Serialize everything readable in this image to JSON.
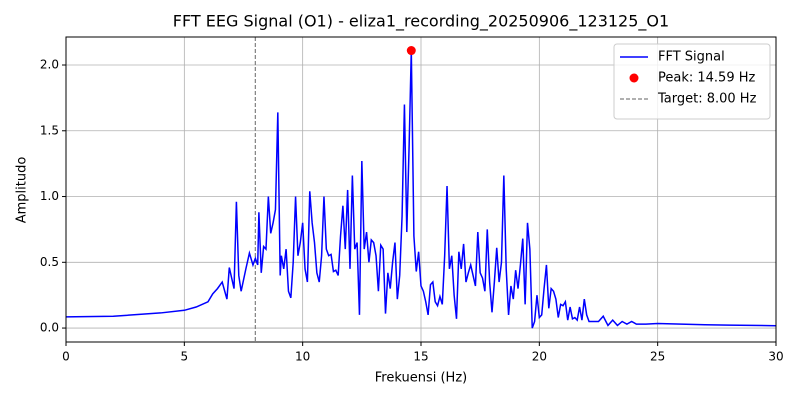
{
  "chart_data": {
    "type": "line",
    "title": "FFT EEG Signal (O1) - eliza1_recording_20250906_123125_O1",
    "x_label": "Frekuensi (Hz)",
    "y_label": "Amplitudo",
    "xlim": [
      0,
      30
    ],
    "ylim": [
      -0.106,
      2.213
    ],
    "xticks": [
      0,
      5,
      10,
      15,
      20,
      25,
      30
    ],
    "yticks": [
      {
        "value": 0,
        "label": "0.0"
      },
      {
        "value": 0.5,
        "label": "0.5"
      },
      {
        "value": 1,
        "label": "1.0"
      },
      {
        "value": 1.5,
        "label": "1.5"
      },
      {
        "value": 2,
        "label": "2.0"
      }
    ],
    "grid": true,
    "legend": "upper right",
    "series": [
      {
        "name": "FFT Signal",
        "color": "#0000ff",
        "type": "line",
        "x": [
          0,
          2,
          4,
          5,
          5.5,
          6,
          6.2,
          6.4,
          6.6,
          6.8,
          6.9,
          7.1,
          7.2,
          7.3,
          7.4,
          7.6,
          7.75,
          7.9,
          8.0,
          8.1,
          8.15,
          8.25,
          8.35,
          8.45,
          8.55,
          8.65,
          8.75,
          8.85,
          8.95,
          9.05,
          9.1,
          9.2,
          9.3,
          9.4,
          9.5,
          9.6,
          9.7,
          9.8,
          9.9,
          10.0,
          10.1,
          10.2,
          10.3,
          10.4,
          10.5,
          10.6,
          10.7,
          10.8,
          10.9,
          11.0,
          11.1,
          11.2,
          11.3,
          11.4,
          11.5,
          11.6,
          11.7,
          11.8,
          11.9,
          12.0,
          12.1,
          12.2,
          12.3,
          12.4,
          12.5,
          12.6,
          12.7,
          12.8,
          12.9,
          13.0,
          13.1,
          13.2,
          13.3,
          13.4,
          13.5,
          13.6,
          13.7,
          13.8,
          13.9,
          14.0,
          14.1,
          14.2,
          14.3,
          14.4,
          14.5,
          14.59,
          14.7,
          14.8,
          14.9,
          15.0,
          15.1,
          15.2,
          15.3,
          15.4,
          15.5,
          15.6,
          15.7,
          15.8,
          15.9,
          16.0,
          16.1,
          16.2,
          16.3,
          16.4,
          16.5,
          16.6,
          16.7,
          16.8,
          16.9,
          17.0,
          17.1,
          17.2,
          17.3,
          17.4,
          17.5,
          17.6,
          17.7,
          17.8,
          17.9,
          18.0,
          18.1,
          18.2,
          18.3,
          18.4,
          18.5,
          18.6,
          18.7,
          18.8,
          18.9,
          19.0,
          19.1,
          19.2,
          19.3,
          19.4,
          19.5,
          19.6,
          19.7,
          19.8,
          19.9,
          20.0,
          20.1,
          20.2,
          20.3,
          20.4,
          20.5,
          20.6,
          20.7,
          20.8,
          20.9,
          21.0,
          21.1,
          21.2,
          21.3,
          21.4,
          21.5,
          21.6,
          21.7,
          21.8,
          21.9,
          22.0,
          22.1,
          22.3,
          22.5,
          22.7,
          22.9,
          23.1,
          23.3,
          23.5,
          23.7,
          23.9,
          24.1,
          24.5,
          25,
          26,
          27,
          28,
          30
        ],
        "values": [
          0.085,
          0.09,
          0.115,
          0.135,
          0.16,
          0.2,
          0.26,
          0.3,
          0.35,
          0.22,
          0.46,
          0.3,
          0.96,
          0.4,
          0.28,
          0.45,
          0.57,
          0.48,
          0.53,
          0.48,
          0.88,
          0.42,
          0.62,
          0.6,
          1.0,
          0.72,
          0.8,
          0.9,
          1.64,
          0.4,
          0.55,
          0.45,
          0.6,
          0.28,
          0.23,
          0.5,
          1.0,
          0.55,
          0.65,
          0.8,
          0.45,
          0.35,
          1.04,
          0.8,
          0.65,
          0.42,
          0.35,
          0.55,
          1.0,
          0.6,
          0.55,
          0.56,
          0.43,
          0.44,
          0.4,
          0.7,
          0.93,
          0.6,
          1.05,
          0.45,
          1.16,
          0.6,
          0.65,
          0.1,
          1.27,
          0.6,
          0.73,
          0.5,
          0.67,
          0.65,
          0.55,
          0.28,
          0.63,
          0.6,
          0.11,
          0.42,
          0.3,
          0.5,
          0.65,
          0.22,
          0.4,
          0.85,
          1.7,
          0.73,
          1.4,
          2.11,
          0.7,
          0.43,
          0.58,
          0.32,
          0.28,
          0.2,
          0.1,
          0.33,
          0.35,
          0.2,
          0.17,
          0.24,
          0.18,
          0.55,
          1.08,
          0.45,
          0.55,
          0.25,
          0.07,
          0.58,
          0.45,
          0.64,
          0.35,
          0.42,
          0.48,
          0.4,
          0.32,
          0.73,
          0.42,
          0.38,
          0.28,
          0.75,
          0.35,
          0.12,
          0.35,
          0.61,
          0.35,
          0.5,
          1.16,
          0.45,
          0.1,
          0.32,
          0.22,
          0.44,
          0.3,
          0.48,
          0.68,
          0.18,
          0.8,
          0.6,
          0.0,
          0.05,
          0.25,
          0.08,
          0.1,
          0.3,
          0.48,
          0.15,
          0.3,
          0.28,
          0.22,
          0.08,
          0.18,
          0.17,
          0.2,
          0.06,
          0.16,
          0.07,
          0.08,
          0.06,
          0.16,
          0.06,
          0.22,
          0.1,
          0.05,
          0.05,
          0.05,
          0.09,
          0.02,
          0.06,
          0.02,
          0.05,
          0.03,
          0.05,
          0.03,
          0.03,
          0.035,
          0.03,
          0.025,
          0.022,
          0.018
        ]
      },
      {
        "name": "Peak: 14.59 Hz",
        "color": "#ff0000",
        "type": "scatter",
        "x": [
          14.59
        ],
        "values": [
          2.11
        ]
      }
    ],
    "vlines": [
      {
        "name": "Target: 8.00 Hz",
        "x": 8,
        "color": "#808080"
      }
    ]
  }
}
